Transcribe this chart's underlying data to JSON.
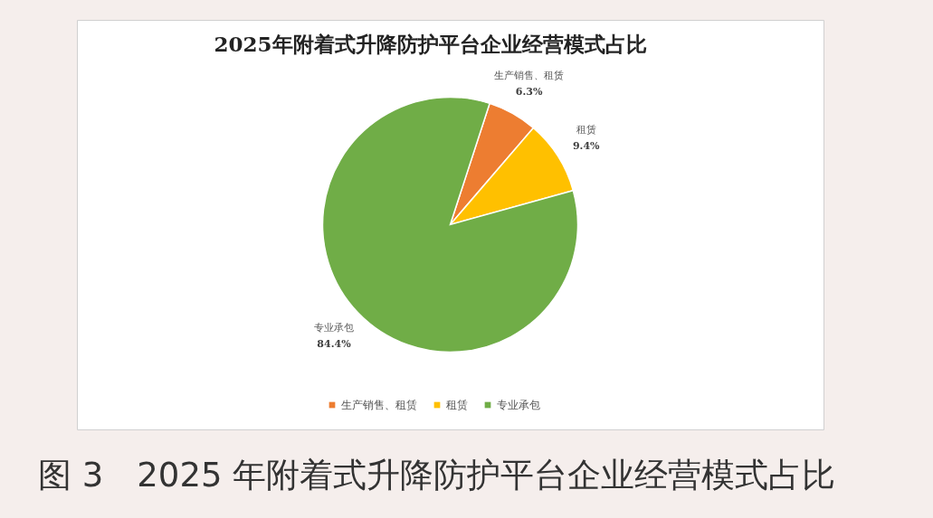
{
  "chart_data": {
    "type": "pie",
    "title": "2025年附着式升降防护平台企业经营模式占比",
    "categories": [
      "生产销售、租赁",
      "租赁",
      "专业承包"
    ],
    "values": [
      6.3,
      9.4,
      84.4
    ],
    "value_labels": [
      "6.3%",
      "9.4%",
      "84.4%"
    ],
    "colors": [
      "#ed7d31",
      "#ffc000",
      "#70ad47"
    ],
    "legend": "bottom",
    "annotations": [
      "图 3　2025 年附着式升降防护平台企业经营模式占比"
    ]
  }
}
